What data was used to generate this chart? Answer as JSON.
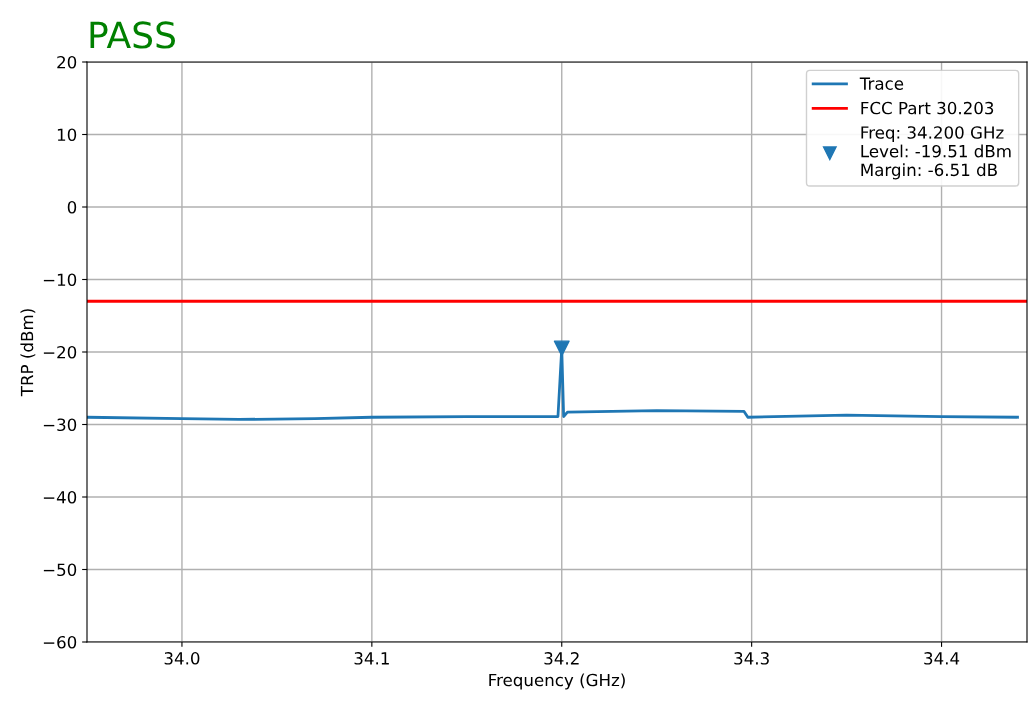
{
  "chart_data": {
    "type": "line",
    "title": "PASS",
    "xlabel": "Frequency (GHz)",
    "ylabel": "TRP (dBm)",
    "series": [
      {
        "name": "Trace",
        "color": "#1f77b4",
        "x": [
          33.95,
          34.0,
          34.03,
          34.07,
          34.1,
          34.15,
          34.198,
          34.2,
          34.201,
          34.203,
          34.25,
          34.296,
          34.298,
          34.35,
          34.4,
          34.44
        ],
        "values": [
          -29.0,
          -29.2,
          -29.3,
          -29.2,
          -29.0,
          -28.9,
          -28.9,
          -19.51,
          -28.9,
          -28.3,
          -28.1,
          -28.2,
          -29.0,
          -28.7,
          -28.9,
          -29.0
        ]
      },
      {
        "name": "Freq: 34.200 GHz\nLevel: -19.51 dBm\nMargin: -6.51 dB",
        "color": "#1f77b4",
        "type": "scatter",
        "marker": "triangle_down",
        "x": [
          34.2
        ],
        "values": [
          -19.51
        ]
      }
    ],
    "ref_lines": [
      {
        "axis": "y",
        "value": -13,
        "label": "FCC Part 30.203",
        "color": "#ff0000",
        "line_style": "solid"
      }
    ],
    "xlim": [
      33.95,
      34.445
    ],
    "xticks": [
      {
        "value": 34.0,
        "label": "34.0"
      },
      {
        "value": 34.1,
        "label": "34.1"
      },
      {
        "value": 34.2,
        "label": "34.2"
      },
      {
        "value": 34.3,
        "label": "34.3"
      },
      {
        "value": 34.4,
        "label": "34.4"
      }
    ],
    "ylim": [
      -60,
      20
    ],
    "yticks": [
      -60,
      -50,
      -40,
      -30,
      -20,
      -10,
      0,
      10,
      20
    ],
    "grid": true,
    "legend": "top right"
  }
}
